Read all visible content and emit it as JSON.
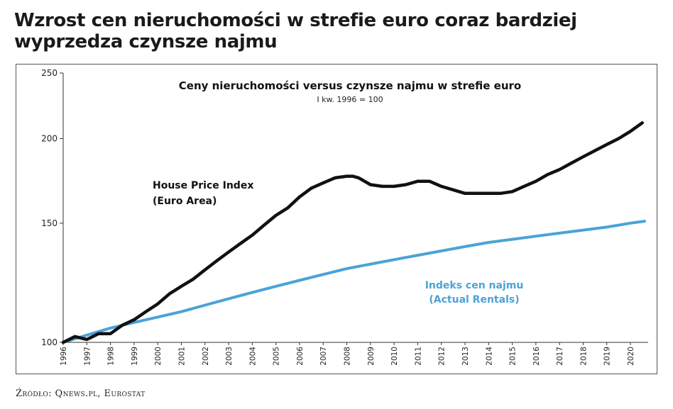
{
  "headline": "Wzrost cen nieruchomości w strefie euro coraz bardziej wyprzedza czynsze najmu",
  "source": "Źródło: Qnews.pl, Eurostat",
  "colors": {
    "house": "#111111",
    "rent": "#4aa3d8",
    "axis": "#333333",
    "frame": "#555555"
  },
  "chart_data": {
    "type": "line",
    "title": "Ceny nieruchomości versus czynsze najmu w strefie euro",
    "subtitle": "I kw. 1996 = 100",
    "xlabel": "",
    "ylabel": "",
    "ylim": [
      100,
      250
    ],
    "yscale": "log",
    "yticks": [
      100,
      150,
      200,
      250
    ],
    "xlim": [
      1996,
      2020.75
    ],
    "xticks": [
      "1996",
      "1997",
      "1998",
      "1999",
      "2000",
      "2001",
      "2002",
      "2003",
      "2004",
      "2005",
      "2006",
      "2007",
      "2008",
      "2009",
      "2010",
      "2011",
      "2012",
      "2013",
      "2014",
      "2015",
      "2016",
      "2017",
      "2018",
      "2019",
      "2020"
    ],
    "series": [
      {
        "name": "House Price Index (Euro Area)",
        "label_lines": [
          "House Price Index",
          "(Euro Area)"
        ],
        "x": [
          1996,
          1996.5,
          1997,
          1997.5,
          1998,
          1998.5,
          1999,
          1999.5,
          2000,
          2000.5,
          2001,
          2001.5,
          2002,
          2002.5,
          2003,
          2003.5,
          2004,
          2004.5,
          2005,
          2005.5,
          2006,
          2006.5,
          2007,
          2007.5,
          2008,
          2008.25,
          2008.5,
          2008.75,
          2009,
          2009.5,
          2010,
          2010.5,
          2011,
          2011.5,
          2012,
          2012.5,
          2013,
          2013.5,
          2014,
          2014.5,
          2015,
          2015.5,
          2016,
          2016.5,
          2017,
          2017.5,
          2018,
          2018.5,
          2019,
          2019.5,
          2020,
          2020.5
        ],
        "values": [
          100,
          102,
          101,
          103,
          103,
          106,
          108,
          111,
          114,
          118,
          121,
          124,
          128,
          132,
          136,
          140,
          144,
          149,
          154,
          158,
          164,
          169,
          172,
          175,
          176,
          176,
          175,
          173,
          171,
          170,
          170,
          171,
          173,
          173,
          170,
          168,
          166,
          166,
          166,
          166,
          167,
          170,
          173,
          177,
          180,
          184,
          188,
          192,
          196,
          200,
          205,
          211
        ]
      },
      {
        "name": "Indeks cen najmu (Actual Rentals)",
        "label_lines": [
          "Indeks cen najmu",
          "(Actual Rentals)"
        ],
        "x": [
          1996,
          1997,
          1998,
          1999,
          2000,
          2001,
          2002,
          2003,
          2004,
          2005,
          2006,
          2007,
          2008,
          2009,
          2010,
          2011,
          2012,
          2013,
          2014,
          2015,
          2016,
          2017,
          2018,
          2019,
          2020,
          2020.6
        ],
        "values": [
          100,
          102.5,
          105,
          107,
          109,
          111,
          113.5,
          116,
          118.5,
          121,
          123.5,
          126,
          128.5,
          130.5,
          132.5,
          134.5,
          136.5,
          138.5,
          140.5,
          142,
          143.5,
          145,
          146.5,
          148,
          150,
          151
        ]
      }
    ]
  }
}
